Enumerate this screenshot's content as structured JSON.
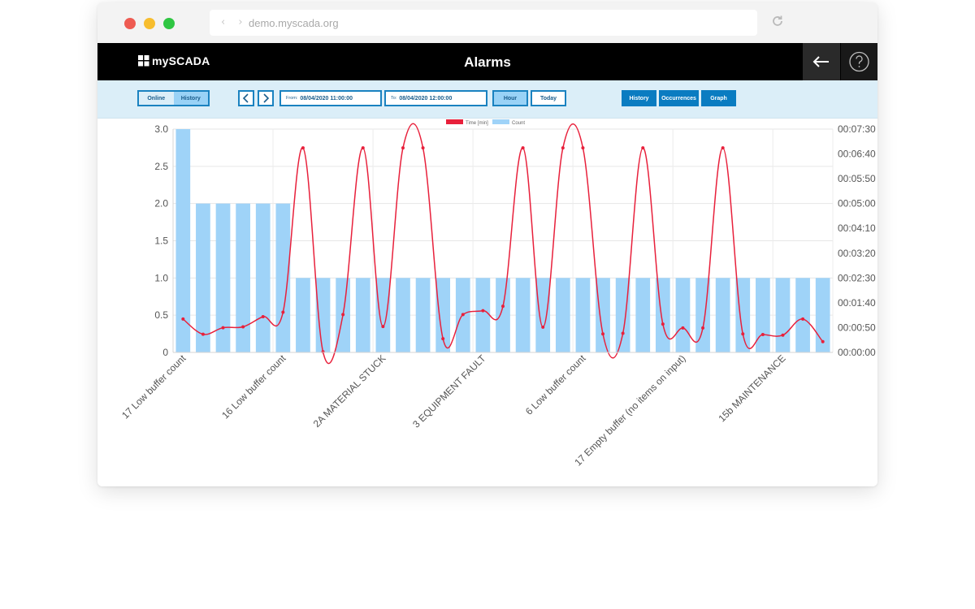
{
  "browser": {
    "url": "demo.myscada.org"
  },
  "app": {
    "logo_text": "mySCADA",
    "title": "Alarms"
  },
  "toolbar": {
    "mode_online": "Online",
    "mode_history": "History",
    "from_label": "From:",
    "from_value": "08/04/2020 11:00:00",
    "to_label": "To:",
    "to_value": "08/04/2020 12:00:00",
    "hour_label": "Hour",
    "today_label": "Today",
    "history_label": "History",
    "occurrences_label": "Occurrences",
    "graph_label": "Graph"
  },
  "colors": {
    "accent": "#0a7cc1",
    "bar": "#9fd3f8",
    "line": "#e8203b"
  },
  "chart_data": {
    "type": "bar",
    "legend": [
      {
        "name": "Time [min]",
        "color": "#e8203b"
      },
      {
        "name": "Count",
        "color": "#9fd3f8"
      }
    ],
    "legend_position": "top-center",
    "y_left_ticks": [
      "0",
      "0.5",
      "1.0",
      "1.5",
      "2.0",
      "2.5",
      "3.0"
    ],
    "y_left_range": [
      0,
      3
    ],
    "y_right_ticks": [
      "00:00:00",
      "00:00:50",
      "00:01:40",
      "00:02:30",
      "00:03:20",
      "00:04:10",
      "00:05:00",
      "00:05:50",
      "00:06:40",
      "00:07:30"
    ],
    "y_right_range_seconds": [
      0,
      450
    ],
    "x_labels": [
      {
        "index": 0,
        "text": "17 Low buffer count"
      },
      {
        "index": 5,
        "text": "16 Low buffer count"
      },
      {
        "index": 10,
        "text": "2A MATERIAL STUCK"
      },
      {
        "index": 15,
        "text": "3 EQUIPMENT FAULT"
      },
      {
        "index": 20,
        "text": "6 Low buffer count"
      },
      {
        "index": 25,
        "text": "17 Empty buffer (no items on input)"
      },
      {
        "index": 30,
        "text": "15b MAINTENANCE"
      }
    ],
    "series": [
      {
        "name": "Count",
        "values": [
          3,
          2,
          2,
          2,
          2,
          2,
          1,
          1,
          1,
          1,
          1,
          1,
          1,
          1,
          1,
          1,
          1,
          1,
          1,
          1,
          1,
          1,
          1,
          1,
          1,
          1,
          1,
          1,
          1,
          1,
          1,
          1,
          1
        ]
      },
      {
        "name": "Time [min]",
        "values": [
          1.12,
          0.61,
          0.83,
          0.86,
          1.2,
          1.35,
          6.87,
          0.02,
          1.27,
          6.87,
          0.87,
          6.87,
          6.87,
          0.46,
          1.27,
          1.4,
          1.55,
          6.87,
          0.85,
          6.87,
          6.87,
          0.62,
          0.64,
          6.87,
          0.95,
          0.82,
          0.82,
          6.87,
          0.62,
          0.6,
          0.58,
          1.12,
          0.36
        ]
      }
    ],
    "grid": true
  }
}
